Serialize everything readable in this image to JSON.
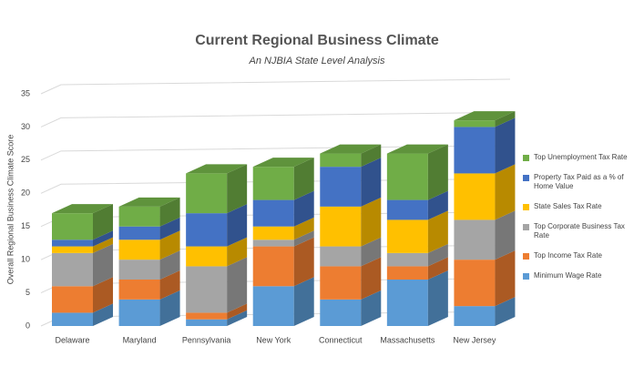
{
  "chart_data": {
    "type": "bar3d-stacked",
    "title": "Current Regional Business Climate",
    "subtitle": "An NJBIA State Level Analysis",
    "y_label": "Overall Regional Business Climate Score",
    "categories": [
      "Delaware",
      "Maryland",
      "Pennsylvania",
      "New York",
      "Connecticut",
      "Massachusetts",
      "New Jersey"
    ],
    "series": [
      {
        "name": "Minimum Wage Rate",
        "color": "#5b9bd5",
        "values": [
          2,
          4,
          1,
          6,
          4,
          7,
          3
        ]
      },
      {
        "name": "Top Income Tax Rate",
        "color": "#ed7d31",
        "values": [
          4,
          3,
          1,
          6,
          5,
          2,
          7
        ]
      },
      {
        "name": "Top Corporate Business Tax Rate",
        "color": "#a5a5a5",
        "values": [
          5,
          3,
          7,
          1,
          3,
          2,
          6
        ]
      },
      {
        "name": "State Sales Tax Rate",
        "color": "#ffc000",
        "values": [
          1,
          3,
          3,
          2,
          6,
          5,
          7
        ]
      },
      {
        "name": "Property Tax Paid as a % of Home Value",
        "color": "#4472c4",
        "values": [
          1,
          2,
          5,
          4,
          6,
          3,
          7
        ]
      },
      {
        "name": "Top Unemployment Tax Rate",
        "color": "#70ad47",
        "values": [
          4,
          3,
          6,
          5,
          2,
          7,
          1
        ]
      }
    ],
    "ylim": [
      0,
      35
    ],
    "yticks": [
      0,
      5,
      10,
      15,
      20,
      25,
      30,
      35
    ],
    "grid": true,
    "legend": "right"
  }
}
